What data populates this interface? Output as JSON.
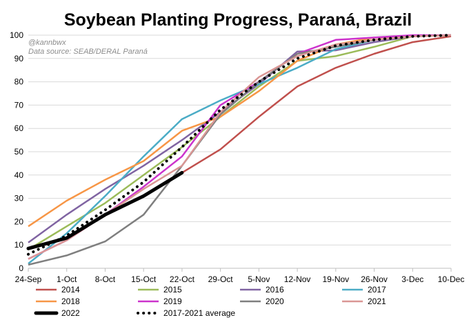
{
  "chart_data": {
    "type": "line",
    "title": "Soybean Planting Progress, Paraná, Brazil",
    "annotations": [
      "@kannbwx",
      "Data source: SEAB/DERAL Paraná"
    ],
    "categories": [
      "24-Sep",
      "1-Oct",
      "8-Oct",
      "15-Oct",
      "22-Oct",
      "29-Oct",
      "5-Nov",
      "12-Nov",
      "19-Nov",
      "26-Nov",
      "3-Dec",
      "10-Dec"
    ],
    "yticks": [
      0,
      10,
      20,
      30,
      40,
      50,
      60,
      70,
      80,
      90,
      100
    ],
    "ylim": [
      0,
      100
    ],
    "grid": "horizontal",
    "legend_position": "bottom",
    "series": [
      {
        "name": "2014",
        "color": "#c0504d",
        "style": "solid",
        "values": [
          null,
          null,
          null,
          null,
          41,
          51,
          65,
          78,
          86,
          92,
          97,
          99.5
        ]
      },
      {
        "name": "2015",
        "color": "#9bbb59",
        "style": "solid",
        "values": [
          8,
          18,
          28,
          40,
          52,
          65,
          78,
          89,
          91,
          95,
          99.5,
          100
        ]
      },
      {
        "name": "2016",
        "color": "#8064a2",
        "style": "solid",
        "values": [
          11,
          23,
          34,
          44,
          55,
          67,
          79,
          93,
          93.5,
          97,
          99.5,
          100
        ]
      },
      {
        "name": "2017",
        "color": "#4bacc6",
        "style": "solid",
        "values": [
          2,
          15,
          31,
          48,
          64,
          72,
          79,
          86,
          94,
          98,
          99.5,
          100
        ]
      },
      {
        "name": "2018",
        "color": "#f79646",
        "style": "solid",
        "values": [
          18,
          29,
          38,
          46,
          59,
          65,
          76,
          89,
          96,
          99,
          99.5,
          100
        ]
      },
      {
        "name": "2019",
        "color": "#cc33cc",
        "style": "solid",
        "values": [
          4,
          12,
          23,
          35,
          48,
          70,
          80,
          92,
          98,
          99,
          100,
          100
        ]
      },
      {
        "name": "2020",
        "color": "#7f7f7f",
        "style": "solid",
        "values": [
          1.5,
          5.5,
          11.5,
          23,
          44,
          66,
          80,
          92,
          95,
          98,
          99.5,
          100
        ]
      },
      {
        "name": "2021",
        "color": "#da9694",
        "style": "solid",
        "values": [
          4,
          12,
          23,
          34,
          44,
          67,
          82,
          91,
          96,
          98,
          99.5,
          100
        ]
      },
      {
        "name": "2022",
        "color": "#000000",
        "style": "bold",
        "values": [
          8.5,
          13,
          23,
          31,
          41,
          null,
          null,
          null,
          null,
          null,
          null,
          null
        ]
      },
      {
        "name": "2017-2021 average",
        "color": "#000000",
        "style": "dotted",
        "values": [
          6,
          14,
          25,
          37,
          52,
          68,
          80,
          90,
          95.5,
          98,
          99.5,
          100
        ]
      }
    ]
  }
}
